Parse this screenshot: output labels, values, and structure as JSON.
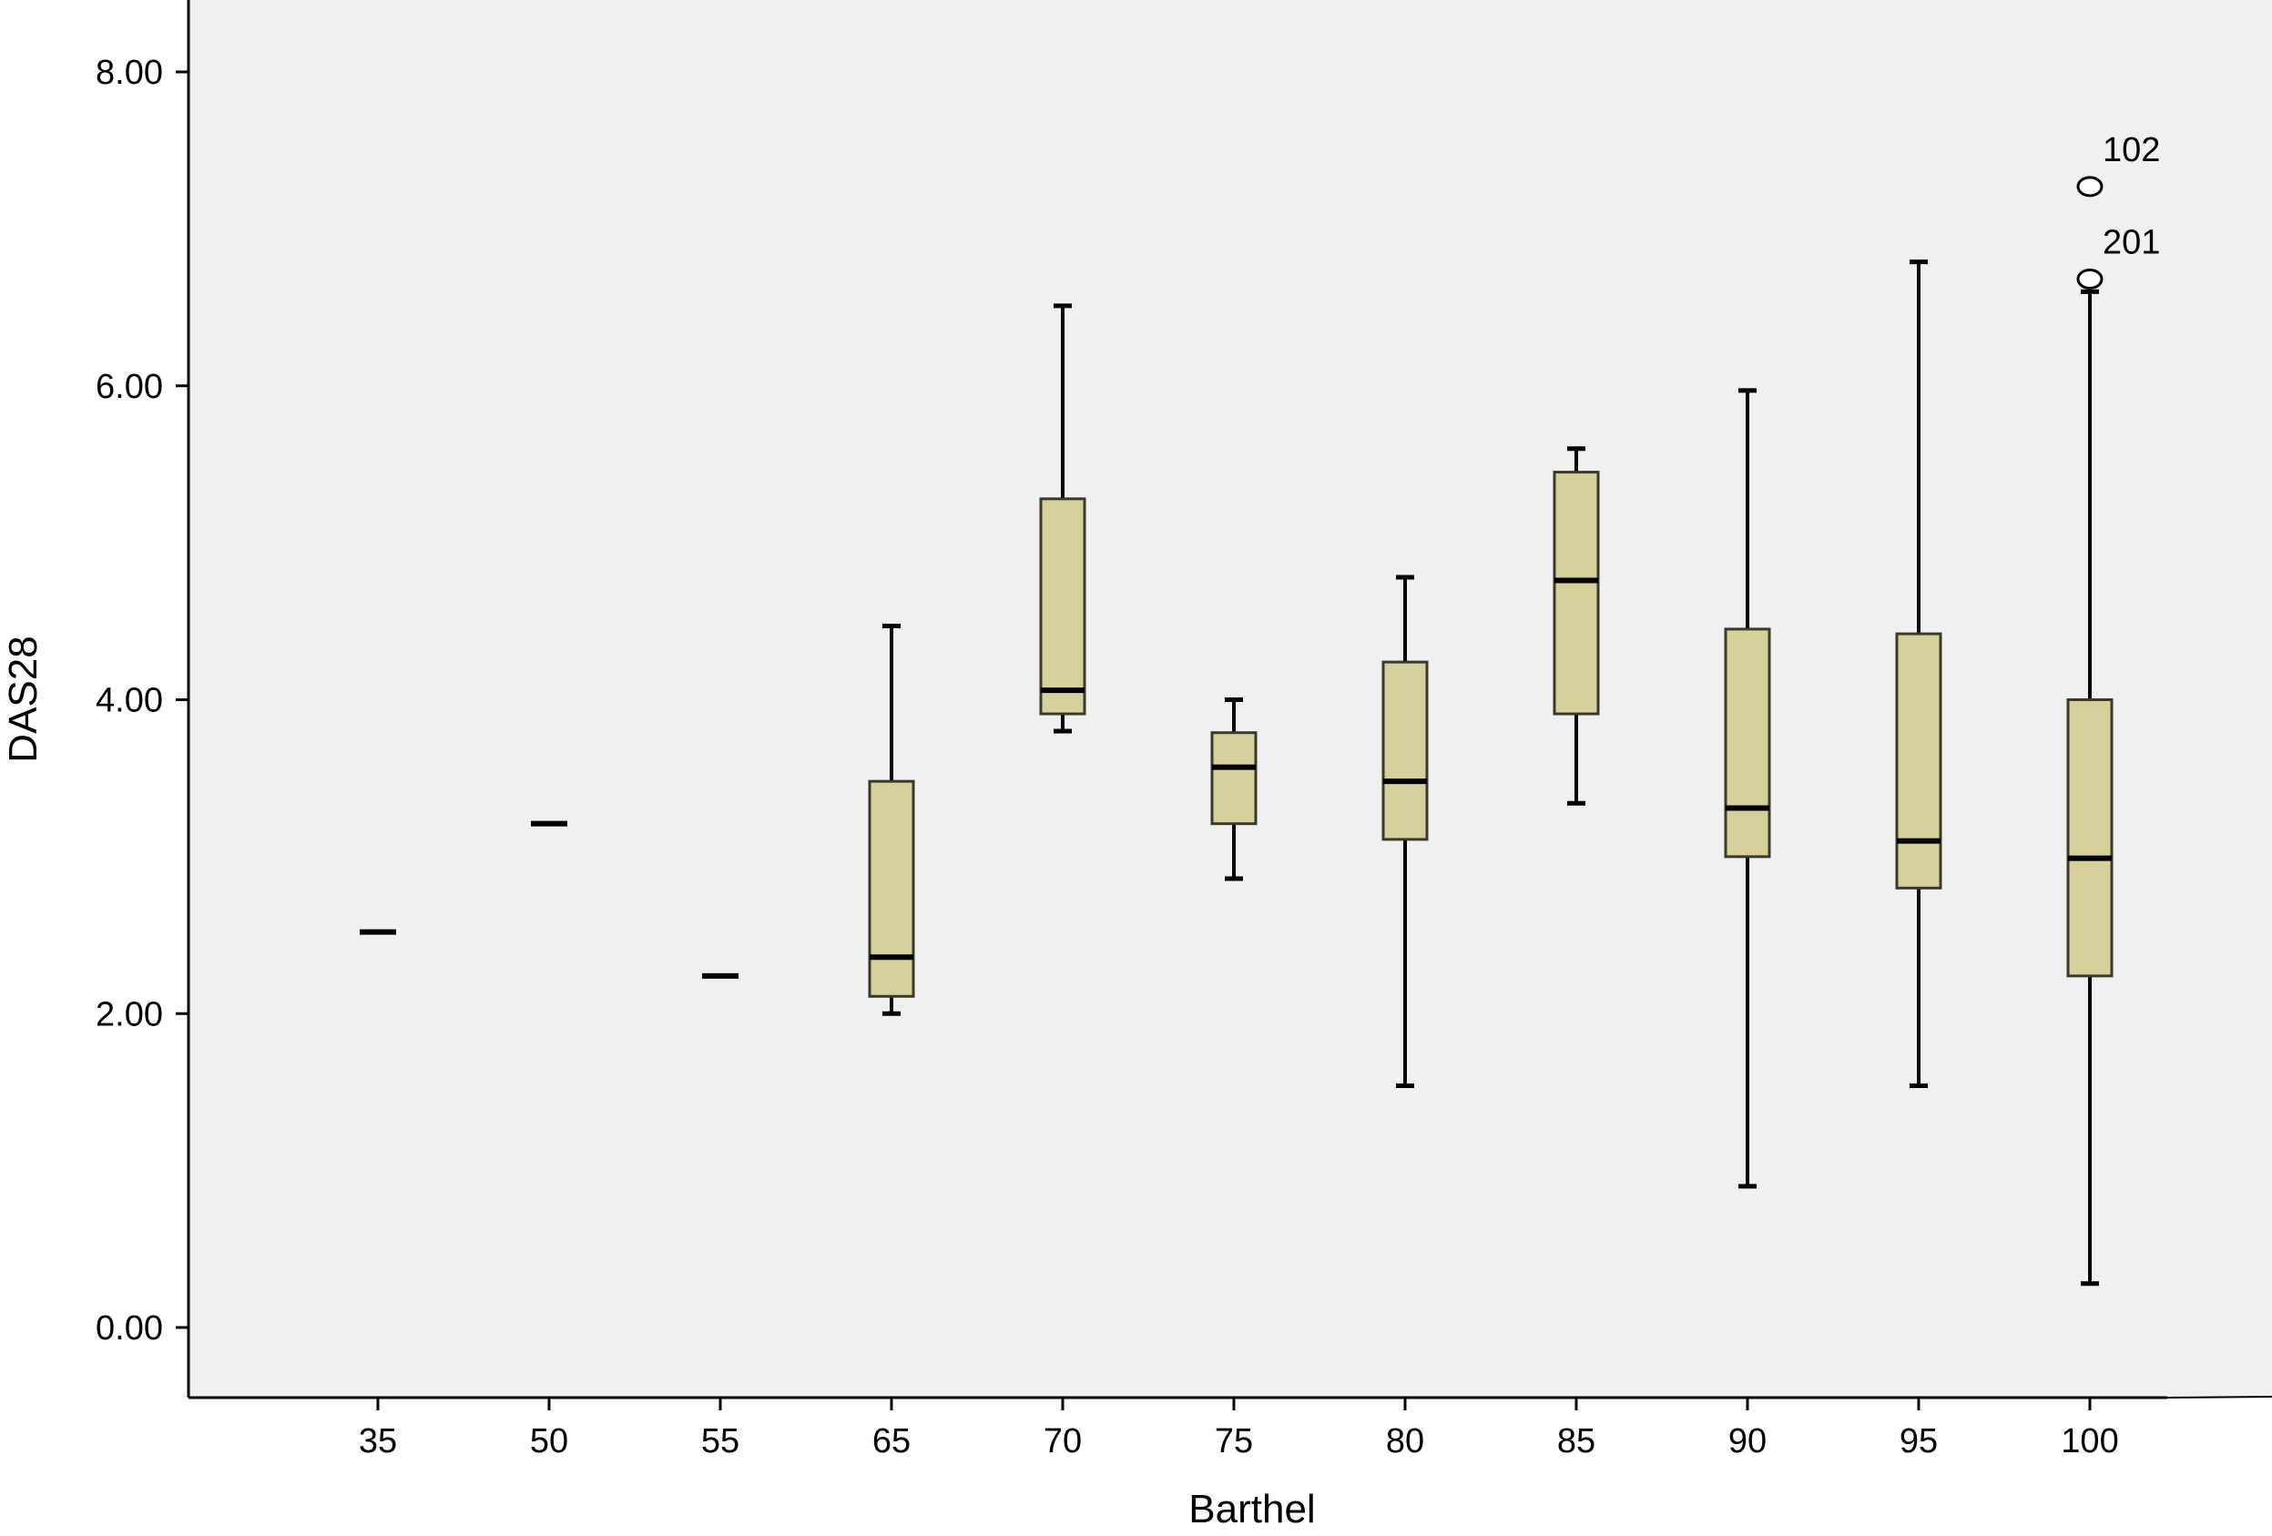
{
  "chart_data": {
    "type": "box",
    "xlabel": "Barthel",
    "ylabel": "DAS28",
    "ylim": [
      -0.45,
      8.45
    ],
    "y_ticks": [
      "0.00",
      "2.00",
      "4.00",
      "6.00",
      "8.00"
    ],
    "y_tick_values": [
      0,
      2,
      4,
      6,
      8
    ],
    "grid": false,
    "categories": [
      "35",
      "50",
      "55",
      "65",
      "70",
      "75",
      "80",
      "85",
      "90",
      "95",
      "100"
    ],
    "boxes": [
      {
        "category": "35",
        "min": 2.52,
        "q1": 2.52,
        "median": 2.52,
        "q3": 2.52,
        "max": 2.52
      },
      {
        "category": "50",
        "min": 3.21,
        "q1": 3.21,
        "median": 3.21,
        "q3": 3.21,
        "max": 3.21
      },
      {
        "category": "55",
        "min": 2.24,
        "q1": 2.24,
        "median": 2.24,
        "q3": 2.24,
        "max": 2.24
      },
      {
        "category": "65",
        "min": 2.0,
        "q1": 2.11,
        "median": 2.36,
        "q3": 3.48,
        "max": 4.47
      },
      {
        "category": "70",
        "min": 3.8,
        "q1": 3.91,
        "median": 4.06,
        "q3": 5.28,
        "max": 6.51
      },
      {
        "category": "75",
        "min": 2.86,
        "q1": 3.21,
        "median": 3.57,
        "q3": 3.79,
        "max": 4.0
      },
      {
        "category": "80",
        "min": 1.54,
        "q1": 3.11,
        "median": 3.48,
        "q3": 4.24,
        "max": 4.78
      },
      {
        "category": "85",
        "min": 3.34,
        "q1": 3.91,
        "median": 4.76,
        "q3": 5.45,
        "max": 5.6
      },
      {
        "category": "90",
        "min": 0.9,
        "q1": 3.0,
        "median": 3.31,
        "q3": 4.45,
        "max": 5.97
      },
      {
        "category": "95",
        "min": 1.54,
        "q1": 2.8,
        "median": 3.1,
        "q3": 4.42,
        "max": 6.79
      },
      {
        "category": "100",
        "min": 0.28,
        "q1": 2.24,
        "median": 2.99,
        "q3": 4.0,
        "max": 6.6
      }
    ],
    "outliers": [
      {
        "category": "100",
        "value": 7.27,
        "label": "102"
      },
      {
        "category": "100",
        "value": 6.68,
        "label": "201"
      }
    ],
    "colors": {
      "plot_background": "#f0f0f0",
      "box_fill": "#d7d09c",
      "box_stroke": "#3a3a2a",
      "axis": "#000000",
      "whisker": "#000000"
    }
  }
}
